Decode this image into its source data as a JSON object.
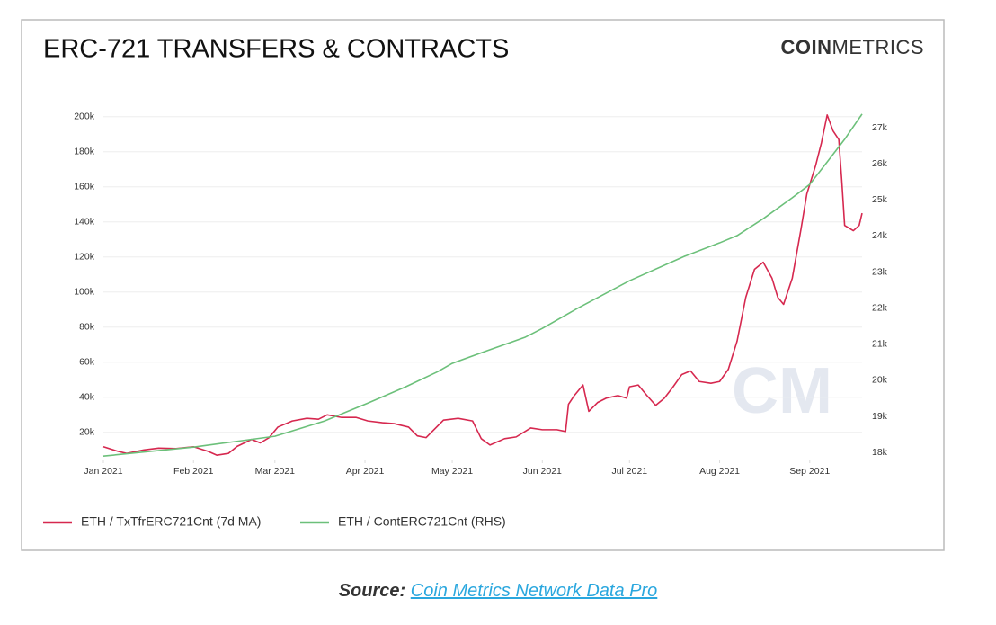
{
  "chart_data": {
    "type": "line",
    "title": "ERC-721 TRANSFERS & CONTRACTS",
    "logo": {
      "bold": "COIN",
      "light": "METRICS"
    },
    "watermark": "CM",
    "xlim": [
      0,
      261
    ],
    "xticks": [
      {
        "value": 0,
        "label": "Jan 2021"
      },
      {
        "value": 31,
        "label": "Feb 2021"
      },
      {
        "value": 59,
        "label": "Mar 2021"
      },
      {
        "value": 90,
        "label": "Apr 2021"
      },
      {
        "value": 120,
        "label": "May 2021"
      },
      {
        "value": 151,
        "label": "Jun 2021"
      },
      {
        "value": 181,
        "label": "Jul 2021"
      },
      {
        "value": 212,
        "label": "Aug 2021"
      },
      {
        "value": 243,
        "label": "Sep 2021"
      }
    ],
    "ylim": [
      4000,
      204000
    ],
    "yticks": [
      {
        "value": 20000,
        "label": "20k"
      },
      {
        "value": 40000,
        "label": "40k"
      },
      {
        "value": 60000,
        "label": "60k"
      },
      {
        "value": 80000,
        "label": "80k"
      },
      {
        "value": 100000,
        "label": "100k"
      },
      {
        "value": 120000,
        "label": "120k"
      },
      {
        "value": 140000,
        "label": "140k"
      },
      {
        "value": 160000,
        "label": "160k"
      },
      {
        "value": 180000,
        "label": "180k"
      },
      {
        "value": 200000,
        "label": "200k"
      }
    ],
    "y2lim": [
      17780,
      27500
    ],
    "y2ticks": [
      {
        "value": 18000,
        "label": "18k"
      },
      {
        "value": 19000,
        "label": "19k"
      },
      {
        "value": 20000,
        "label": "20k"
      },
      {
        "value": 21000,
        "label": "21k"
      },
      {
        "value": 22000,
        "label": "22k"
      },
      {
        "value": 23000,
        "label": "23k"
      },
      {
        "value": 24000,
        "label": "24k"
      },
      {
        "value": 25000,
        "label": "25k"
      },
      {
        "value": 26000,
        "label": "26k"
      },
      {
        "value": 27000,
        "label": "27k"
      }
    ],
    "grid": true,
    "series": [
      {
        "name": "ETH / TxTfrERC721Cnt (7d MA)",
        "color": "#d6284f",
        "axis": "y",
        "x": [
          0,
          5,
          8,
          14,
          19,
          25,
          31,
          36,
          39,
          43,
          46,
          51,
          54,
          57,
          60,
          65,
          70,
          74,
          77,
          82,
          87,
          91,
          96,
          100,
          105,
          108,
          111,
          114,
          117,
          122,
          127,
          130,
          133,
          138,
          142,
          147,
          151,
          156,
          159,
          160,
          162,
          165,
          167,
          170,
          173,
          177,
          180,
          181,
          184,
          187,
          190,
          193,
          196,
          199,
          202,
          205,
          209,
          212,
          215,
          218,
          221,
          224,
          227,
          230,
          232,
          234,
          237,
          240,
          242,
          245,
          247,
          249,
          251,
          253,
          254,
          255,
          258,
          260,
          261
        ],
        "values": [
          11800,
          9200,
          8000,
          10000,
          11000,
          10800,
          11800,
          9200,
          7000,
          8000,
          12000,
          16000,
          14000,
          17000,
          23000,
          26500,
          28000,
          27500,
          30000,
          28500,
          28500,
          26500,
          25500,
          25000,
          23000,
          18000,
          17000,
          22000,
          27000,
          28000,
          26500,
          16400,
          12800,
          16400,
          17400,
          22500,
          21500,
          21500,
          20500,
          36000,
          41000,
          47000,
          32000,
          37000,
          39500,
          41000,
          39500,
          46000,
          47000,
          41000,
          35400,
          39500,
          46000,
          53000,
          55000,
          49000,
          48000,
          49000,
          56000,
          72000,
          97000,
          113000,
          117000,
          108000,
          97000,
          93000,
          108000,
          136000,
          156000,
          172000,
          185000,
          201000,
          192000,
          187000,
          164000,
          138000,
          135000,
          138000,
          145000
        ]
      },
      {
        "name": "ETH / ContERC721Cnt (RHS)",
        "color": "#6cc07a",
        "axis": "y2",
        "x": [
          0,
          31,
          59,
          76,
          91,
          104,
          115,
          120,
          132,
          145,
          151,
          163,
          181,
          200,
          212,
          218,
          227,
          237,
          243,
          249,
          255,
          261
        ],
        "values": [
          17900,
          18150,
          18450,
          18870,
          19370,
          19820,
          20240,
          20470,
          20820,
          21190,
          21440,
          21990,
          22760,
          23440,
          23810,
          24010,
          24480,
          25060,
          25430,
          26050,
          26680,
          27380
        ]
      }
    ]
  },
  "source": {
    "label": "Source:",
    "link": "Coin Metrics Network Data Pro"
  }
}
